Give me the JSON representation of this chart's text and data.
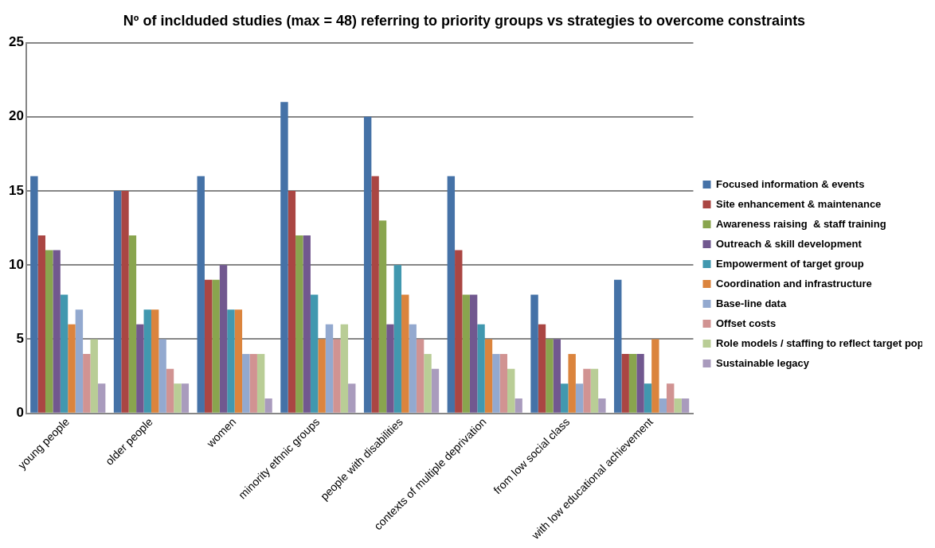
{
  "chart_data": {
    "type": "bar",
    "title": "Nº of inclduded studies (max = 48) referring to priority groups vs strategies to overcome constraints",
    "categories": [
      "young people",
      "older people",
      "women",
      "minority ethnic groups",
      "people with disabilities",
      "contexts of multiple deprivation",
      "from low social class",
      "with low educational achievement"
    ],
    "series": [
      {
        "name": "Focused information & events",
        "color": "#4572a7",
        "values": [
          16,
          15,
          16,
          21,
          20,
          16,
          8,
          9
        ]
      },
      {
        "name": "Site enhancement & maintenance",
        "color": "#aa4643",
        "values": [
          12,
          15,
          9,
          15,
          16,
          11,
          6,
          4
        ]
      },
      {
        "name": "Awareness raising  & staff training",
        "color": "#89a54e",
        "values": [
          11,
          12,
          9,
          12,
          13,
          8,
          5,
          4
        ]
      },
      {
        "name": "Outreach & skill development",
        "color": "#71588f",
        "values": [
          11,
          6,
          10,
          12,
          6,
          8,
          5,
          4
        ]
      },
      {
        "name": "Empowerment of target group",
        "color": "#4198af",
        "values": [
          8,
          7,
          7,
          8,
          10,
          6,
          2,
          2
        ]
      },
      {
        "name": "Coordination and infrastructure",
        "color": "#db843d",
        "values": [
          6,
          7,
          7,
          5,
          8,
          5,
          4,
          5
        ]
      },
      {
        "name": "Base-line data",
        "color": "#93a9cf",
        "values": [
          7,
          5,
          4,
          6,
          6,
          4,
          2,
          1
        ]
      },
      {
        "name": "Offset costs",
        "color": "#d19392",
        "values": [
          4,
          3,
          4,
          5,
          5,
          4,
          3,
          2
        ]
      },
      {
        "name": "Role models / staffing to reflect target pop",
        "color": "#b9cd96",
        "values": [
          5,
          2,
          4,
          6,
          4,
          3,
          3,
          1
        ]
      },
      {
        "name": "Sustainable legacy",
        "color": "#a99bbd",
        "values": [
          2,
          2,
          1,
          2,
          3,
          1,
          1,
          1
        ]
      }
    ],
    "ylim": [
      0,
      25
    ],
    "yticks": [
      0,
      5,
      10,
      15,
      20,
      25
    ],
    "grid": "y",
    "legend": "right"
  }
}
